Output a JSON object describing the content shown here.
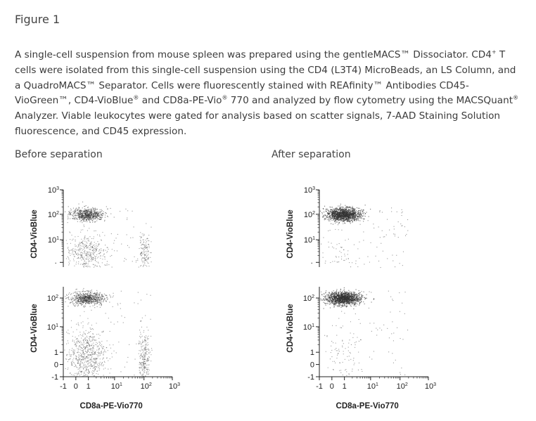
{
  "heading": "Figure 1",
  "caption": {
    "parts": [
      {
        "t": "A single-cell suspension from mouse spleen was prepared using the gentleMACS™ Dissociator. CD4"
      },
      {
        "sup": "+"
      },
      {
        "t": " T cells were isolated from this single-cell suspension using the CD4 (L3T4) MicroBeads, an LS Column, and a QuadroMACS™ Separator. Cells were fluorescently stained with REAfinity™ Antibodies CD45-VioGreen™, CD4-VioBlue"
      },
      {
        "sup": "®"
      },
      {
        "t": " and CD8a-PE-Vio"
      },
      {
        "sup": "®"
      },
      {
        "t": " 770 and analyzed by flow cytometry using the MACSQuant"
      },
      {
        "sup": "®"
      },
      {
        "t": " Analyzer. Viable leukocytes were gated for analysis based on scatter signals, 7-AAD Staining Solution fluorescence, and CD45 expression."
      }
    ]
  },
  "panels": [
    {
      "title": "Before separation"
    },
    {
      "title": "After separation"
    }
  ],
  "chart_data": [
    {
      "type": "scatter",
      "title": "Before separation",
      "xlabel": "CD8a-PE-Vio770",
      "ylabel": "CD4-VioBlue",
      "x_ticks": [
        "-1",
        "0",
        "1",
        "10^1",
        "10^2",
        "10^3"
      ],
      "y_ticks": [
        "-1",
        "0",
        "1",
        "10^1",
        "10^2",
        "10^3"
      ],
      "clusters": [
        {
          "name": "CD4+ CD8-",
          "x": 0.9,
          "y": 100,
          "density": "high"
        },
        {
          "name": "CD4- CD8-",
          "x": 0.8,
          "y": 0.6,
          "density": "high"
        },
        {
          "name": "CD4- CD8+",
          "x": 100,
          "y": 0.6,
          "density": "medium"
        }
      ]
    },
    {
      "type": "scatter",
      "title": "After separation",
      "xlabel": "CD8a-PE-Vio770",
      "ylabel": "CD4-VioBlue",
      "x_ticks": [
        "-1",
        "0",
        "1",
        "10^1",
        "10^2",
        "10^3"
      ],
      "y_ticks": [
        "-1",
        "0",
        "1",
        "10^1",
        "10^2",
        "10^3"
      ],
      "clusters": [
        {
          "name": "CD4+ CD8-",
          "x": 0.9,
          "y": 100,
          "density": "very high"
        },
        {
          "name": "CD4- CD8-",
          "x": 0.8,
          "y": 0.6,
          "density": "sparse"
        }
      ]
    }
  ]
}
